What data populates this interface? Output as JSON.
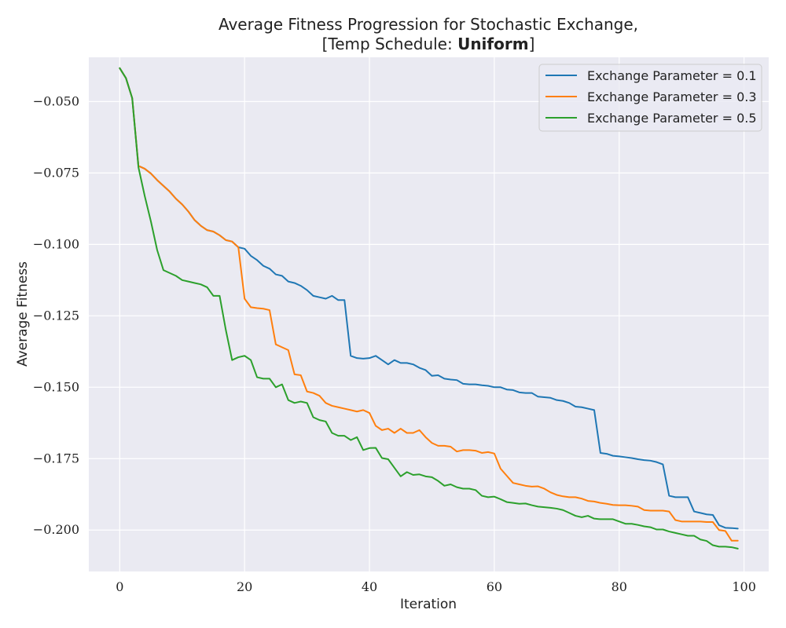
{
  "chart_data": {
    "type": "line",
    "title": "Average Fitness Progression for Stochastic Exchange,",
    "subtitle_prefix": "[Temp Schedule: ",
    "subtitle_bold": "Uniform",
    "subtitle_suffix": "]",
    "xlabel": "Iteration",
    "ylabel": "Average Fitness",
    "xlim": [
      -4.95,
      103.95
    ],
    "ylim": [
      -0.2145,
      -0.0345
    ],
    "xticks": [
      0,
      20,
      40,
      60,
      80,
      100
    ],
    "yticks": [
      -0.05,
      -0.075,
      -0.1,
      -0.125,
      -0.15,
      -0.175,
      -0.2
    ],
    "xtick_labels": [
      "0",
      "20",
      "40",
      "60",
      "80",
      "100"
    ],
    "ytick_labels": [
      "−0.050",
      "−0.075",
      "−0.100",
      "−0.125",
      "−0.150",
      "−0.175",
      "−0.200"
    ],
    "grid": true,
    "legend_position": "top-right",
    "colors": {
      "plot_bg": "#eaeaf2",
      "grid": "#ffffff"
    },
    "series": [
      {
        "name": "Exchange Parameter = 0.1",
        "color": "#1f77b4",
        "values": [
          -0.0383,
          -0.0418,
          -0.0488,
          -0.0725,
          -0.0735,
          -0.0752,
          -0.0775,
          -0.0795,
          -0.0815,
          -0.084,
          -0.086,
          -0.0885,
          -0.0915,
          -0.0935,
          -0.095,
          -0.0955,
          -0.0968,
          -0.0985,
          -0.099,
          -0.101,
          -0.1015,
          -0.104,
          -0.1055,
          -0.1075,
          -0.1085,
          -0.1105,
          -0.111,
          -0.113,
          -0.1135,
          -0.1145,
          -0.116,
          -0.118,
          -0.1185,
          -0.119,
          -0.118,
          -0.1195,
          -0.1195,
          -0.139,
          -0.1398,
          -0.14,
          -0.1398,
          -0.139,
          -0.1405,
          -0.142,
          -0.1405,
          -0.1415,
          -0.1415,
          -0.142,
          -0.1432,
          -0.144,
          -0.146,
          -0.1458,
          -0.147,
          -0.1473,
          -0.1475,
          -0.1488,
          -0.149,
          -0.149,
          -0.1493,
          -0.1495,
          -0.15,
          -0.15,
          -0.1508,
          -0.151,
          -0.1518,
          -0.152,
          -0.152,
          -0.1533,
          -0.1535,
          -0.1537,
          -0.1545,
          -0.1548,
          -0.1555,
          -0.1568,
          -0.157,
          -0.1575,
          -0.158,
          -0.173,
          -0.1733,
          -0.174,
          -0.1742,
          -0.1745,
          -0.1748,
          -0.1752,
          -0.1755,
          -0.1757,
          -0.1762,
          -0.177,
          -0.188,
          -0.1885,
          -0.1885,
          -0.1885,
          -0.1935,
          -0.194,
          -0.1945,
          -0.1947,
          -0.1983,
          -0.1992,
          -0.1993,
          -0.1995
        ]
      },
      {
        "name": "Exchange Parameter = 0.3",
        "color": "#ff7f0e",
        "values": [
          -0.0383,
          -0.0418,
          -0.0488,
          -0.0725,
          -0.0735,
          -0.0752,
          -0.0775,
          -0.0795,
          -0.0815,
          -0.084,
          -0.086,
          -0.0885,
          -0.0915,
          -0.0935,
          -0.095,
          -0.0955,
          -0.0968,
          -0.0985,
          -0.099,
          -0.101,
          -0.119,
          -0.122,
          -0.1223,
          -0.1225,
          -0.123,
          -0.135,
          -0.136,
          -0.137,
          -0.1455,
          -0.1458,
          -0.1515,
          -0.152,
          -0.153,
          -0.1555,
          -0.1565,
          -0.157,
          -0.1575,
          -0.158,
          -0.1585,
          -0.158,
          -0.159,
          -0.1635,
          -0.165,
          -0.1645,
          -0.166,
          -0.1645,
          -0.166,
          -0.166,
          -0.165,
          -0.1675,
          -0.1695,
          -0.1705,
          -0.1705,
          -0.1708,
          -0.1725,
          -0.172,
          -0.172,
          -0.1722,
          -0.173,
          -0.1727,
          -0.1732,
          -0.1785,
          -0.181,
          -0.1835,
          -0.184,
          -0.1845,
          -0.1848,
          -0.1847,
          -0.1855,
          -0.1868,
          -0.1877,
          -0.1882,
          -0.1885,
          -0.1885,
          -0.189,
          -0.1898,
          -0.19,
          -0.1905,
          -0.1908,
          -0.1912,
          -0.1913,
          -0.1913,
          -0.1915,
          -0.1918,
          -0.193,
          -0.1932,
          -0.1932,
          -0.1932,
          -0.1935,
          -0.1965,
          -0.197,
          -0.197,
          -0.197,
          -0.197,
          -0.1972,
          -0.1972,
          -0.2,
          -0.2003,
          -0.2037,
          -0.2037
        ]
      },
      {
        "name": "Exchange Parameter = 0.5",
        "color": "#2ca02c",
        "values": [
          -0.0383,
          -0.0418,
          -0.0488,
          -0.073,
          -0.083,
          -0.092,
          -0.102,
          -0.109,
          -0.11,
          -0.111,
          -0.1125,
          -0.113,
          -0.1135,
          -0.114,
          -0.115,
          -0.118,
          -0.118,
          -0.13,
          -0.1405,
          -0.1395,
          -0.139,
          -0.1405,
          -0.1465,
          -0.147,
          -0.147,
          -0.15,
          -0.149,
          -0.1545,
          -0.1555,
          -0.155,
          -0.1555,
          -0.1605,
          -0.1615,
          -0.162,
          -0.166,
          -0.167,
          -0.167,
          -0.1685,
          -0.1675,
          -0.172,
          -0.1713,
          -0.1712,
          -0.1748,
          -0.1752,
          -0.1782,
          -0.1812,
          -0.1797,
          -0.1807,
          -0.1805,
          -0.1812,
          -0.1815,
          -0.1828,
          -0.1845,
          -0.184,
          -0.185,
          -0.1855,
          -0.1855,
          -0.186,
          -0.188,
          -0.1885,
          -0.1883,
          -0.1892,
          -0.1902,
          -0.1905,
          -0.1908,
          -0.1907,
          -0.1913,
          -0.1918,
          -0.192,
          -0.1922,
          -0.1925,
          -0.193,
          -0.194,
          -0.195,
          -0.1955,
          -0.195,
          -0.196,
          -0.1962,
          -0.1962,
          -0.1962,
          -0.197,
          -0.1978,
          -0.1978,
          -0.1982,
          -0.1987,
          -0.199,
          -0.1998,
          -0.1998,
          -0.2005,
          -0.201,
          -0.2015,
          -0.202,
          -0.202,
          -0.2033,
          -0.2038,
          -0.2053,
          -0.2058,
          -0.2058,
          -0.206,
          -0.2065
        ]
      }
    ]
  }
}
